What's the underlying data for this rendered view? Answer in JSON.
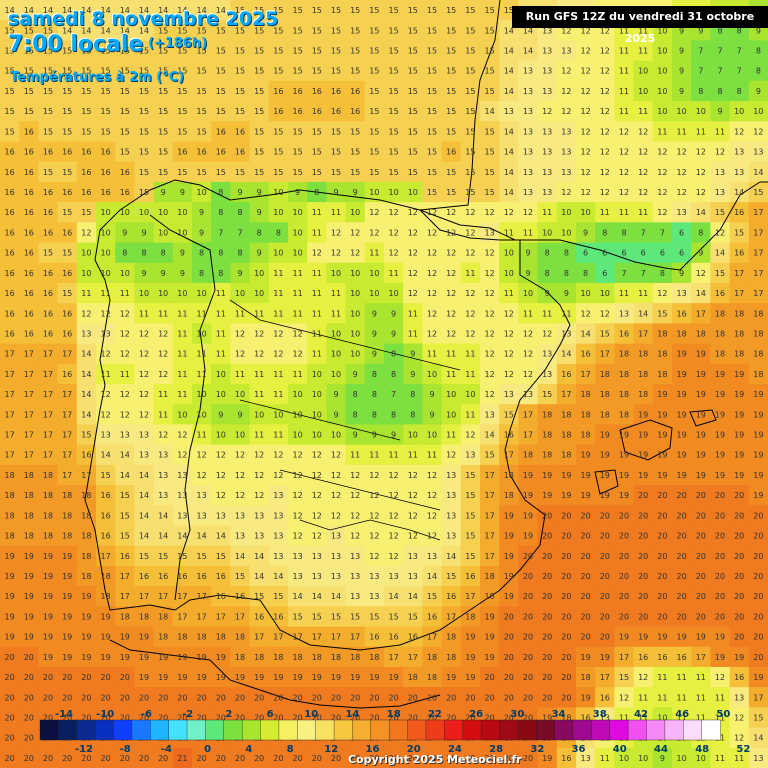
{
  "header": {
    "date_line": "samedi 8 novembre 2025",
    "time_line": "7:00 locale",
    "lead_time": "(+186h)",
    "variable": "Températures à 2m (°C)",
    "run_info": "Run GFS 12Z du vendredi 31 octobre 2025"
  },
  "legend": {
    "top_labels": [
      "-14",
      "-10",
      "-6",
      "-2",
      "2",
      "6",
      "10",
      "14",
      "18",
      "22",
      "26",
      "30",
      "34",
      "38",
      "42",
      "46",
      "50"
    ],
    "bottom_labels": [
      "-12",
      "-8",
      "-4",
      "0",
      "4",
      "8",
      "12",
      "16",
      "20",
      "24",
      "28",
      "32",
      "36",
      "40",
      "44",
      "48",
      "52"
    ],
    "colors": [
      "#0a1040",
      "#082060",
      "#0a2a90",
      "#0a30c0",
      "#1040ff",
      "#1a78ff",
      "#20b4ff",
      "#46e0ff",
      "#6ef0c8",
      "#5ee87a",
      "#7ce040",
      "#a8e430",
      "#d6ec30",
      "#f4f060",
      "#f8f080",
      "#f8e060",
      "#f6c840",
      "#f4ae30",
      "#f49224",
      "#f2761e",
      "#f05a1a",
      "#ee3c1a",
      "#ec1e1a",
      "#d40e10",
      "#b80a10",
      "#a00a14",
      "#8a0a14",
      "#780a28",
      "#880a60",
      "#a00a90",
      "#c00ab8",
      "#e00ae0",
      "#f050f0",
      "#f488f4",
      "#f8b4f8",
      "#fbdcfb",
      "#ffffff"
    ]
  },
  "copyright": "Copyright 2025 Meteociel.fr",
  "grid": {
    "rows": [
      "14 14 14 14 14 14 14 14 14 14 14 14 15 15 15 15 15 15 15 15 15 15 15 15 15 15 15 14 14 13 13 12 12 12 12 11 11 10 10 9",
      "15 15 15 14 14 14 14 14 15 15 15 15 15 15 15 15 15 15 15 15 15 15 15 15 15 15 14 14 13 12 12 12 11 11 10 9 9 8 8 9",
      "15 15 15 15 15 15 15 15 15 15 15 15 15 15 15 15 15 15 15 15 15 15 15 15 15 15 14 14 13 13 12 12 11 11 10 9 7 7 7 8",
      "15 15 15 15 15 15 15 15 15 15 15 15 15 15 15 15 15 15 15 15 15 15 15 15 15 15 14 13 13 12 12 12 11 10 10 9 7 7 7 8",
      "15 15 15 15 15 15 15 15 15 15 15 15 15 15 16 16 16 16 16 15 15 15 15 15 15 15 14 13 13 12 12 12 11 10 10 9 8 8 8 9",
      "15 15 15 15 15 15 15 15 15 15 15 15 15 15 16 16 16 16 16 15 15 15 15 15 15 14 13 13 12 12 12 12 11 11 10 10 10 9 10 10",
      "15 16 15 15 15 15 15 15 15 15 15 16 16 15 15 15 15 15 15 15 15 15 15 15 15 15 14 13 13 13 12 12 12 12 11 11 11 11 12 12",
      "16 16 16 16 16 16 15 15 15 16 16 16 16 15 15 15 15 15 15 15 15 15 15 16 15 15 14 13 13 13 12 12 12 12 12 12 12 12 13 13",
      "16 16 15 15 16 16 16 15 15 15 15 15 15 15 15 15 15 15 15 15 15 15 15 15 15 15 14 13 13 13 12 12 12 12 12 12 12 13 13 14",
      "16 16 16 16 16 16 16 15 9 9 10 8 9 9 10 9 8 9 9 10 10 10 15 15 15 15 14 13 13 12 12 12 12 12 12 12 12 13 14 15",
      "16 16 16 15 15 10 10 10 10 10 9 8 8 9 10 10 11 11 10 12 12 12 12 12 12 12 12 12 11 10 10 11 11 11 12 13 14 15 16 17",
      "16 16 16 16 12 10 9 9 10 10 9 7 7 8 8 10 11 12 12 12 12 12 12 12 12 13 11 11 10 10 9 8 8 7 7 6 8 12 15 17",
      "16 16 15 15 10 10 8 8 8 9 8 8 8 9 10 10 12 12 12 11 12 12 12 12 12 12 10 9 8 8 6 6 6 6 6 6 9 14 16 17",
      "16 16 16 16 10 10 10 9 9 9 8 8 9 10 11 11 11 10 10 10 11 12 12 12 11 12 10 9 8 8 8 6 7 7 8 9 12 15 17 17",
      "16 16 16 15 11 11 11 10 10 10 10 11 10 10 11 11 11 11 10 10 10 12 12 12 12 12 11 10 9 9 10 10 11 11 12 13 14 16 17 17",
      "16 16 16 16 12 12 12 11 11 11 11 11 11 11 11 11 11 11 10 9 9 11 12 12 12 12 12 11 11 11 12 12 13 14 15 16 17 18 18 18",
      "16 16 16 16 13 13 12 12 12 11 10 11 12 12 12 12 11 10 10 9 9 11 12 12 12 12 12 12 12 13 14 15 16 17 18 18 18 18 18 18",
      "17 17 17 17 14 12 12 12 12 11 11 11 12 12 12 12 11 10 10 9 8 9 11 11 11 12 12 12 13 14 16 17 18 18 18 19 19 18 18 18",
      "17 17 17 16 14 11 11 12 12 11 11 10 11 11 11 11 10 10 9 8 8 9 10 11 11 12 12 12 13 16 17 18 18 18 18 19 19 19 19 18",
      "17 17 17 17 14 12 12 12 11 11 10 10 10 11 11 10 10 9 8 8 7 8 9 10 10 12 13 13 15 17 18 18 18 18 19 19 19 19 19 19",
      "17 17 17 17 14 12 12 12 11 10 10 9 9 10 10 10 10 9 8 8 8 8 9 10 11 13 15 17 18 18 18 18 18 19 19 19 19 19 19 19",
      "17 17 17 17 15 13 13 13 12 12 11 10 10 11 11 10 10 10 9 9 9 10 10 11 12 14 16 17 18 18 18 19 19 19 19 19 19 19 19 19",
      "17 17 17 17 16 14 14 13 13 12 12 12 12 12 12 12 12 12 11 11 11 11 11 12 13 15 17 18 18 18 19 19 19 19 19 19 19 19 19 19",
      "18 18 18 17 17 15 14 14 13 13 12 12 12 12 12 12 12 12 12 12 12 12 12 13 15 17 18 19 19 19 19 19 19 19 19 19 19 19 19 19",
      "18 18 18 18 18 16 15 14 13 13 13 12 12 12 13 12 12 12 12 12 12 12 12 13 15 17 18 19 19 19 19 19 19 20 20 20 20 20 20 19",
      "18 18 18 18 18 16 15 14 14 13 13 13 13 13 13 12 12 12 12 12 12 12 12 13 15 17 19 19 20 20 20 20 20 20 20 20 20 20 20 20",
      "18 18 18 18 18 16 15 14 14 14 14 14 13 13 13 12 12 13 12 12 12 12 12 13 15 17 19 19 20 20 20 20 20 20 20 20 20 20 20 20",
      "19 19 19 19 18 17 16 15 15 15 15 15 14 14 13 13 13 13 13 12 12 13 13 14 15 17 19 20 20 20 20 20 20 20 20 20 20 20 20 20",
      "19 19 19 19 18 18 17 16 16 16 16 16 15 14 14 13 13 13 13 13 13 13 14 15 16 18 19 20 20 20 20 20 20 20 20 20 20 20 20 20",
      "19 19 19 19 19 18 17 17 17 17 17 16 16 15 15 14 14 14 13 13 14 14 15 16 17 18 19 20 20 20 20 20 20 20 20 20 20 20 20 20",
      "19 19 19 19 19 19 18 18 18 17 17 17 17 16 16 15 15 15 15 15 15 15 16 17 18 19 20 20 20 20 20 20 20 20 20 20 20 20 20 20",
      "19 19 19 19 19 19 19 19 18 18 18 18 18 17 17 17 17 17 17 16 16 16 17 18 19 19 20 20 20 20 20 20 19 19 19 19 19 19 20 20",
      "20 20 19 19 19 19 19 19 19 19 19 19 18 18 18 18 18 18 18 18 17 17 18 18 19 19 20 20 20 20 19 19 17 16 16 16 17 19 19 20",
      "20 20 20 20 20 20 20 19 19 19 19 19 19 19 19 19 19 19 19 19 19 18 18 19 19 20 20 20 20 20 18 17 15 12 11 11 11 12 16 19",
      "20 20 20 20 20 20 20 20 20 20 20 20 20 20 20 20 20 20 20 20 20 20 20 20 20 20 20 20 20 20 19 16 12 11 11 11 11 11 13 17",
      "20 20 20 20 20 20 20 20 20 20 20 20 20 20 20 20 20 20 20 20 20 20 20 20 20 20 20 20 19 18 16 13 11 11 10 11 11 11 12 15",
      "20 20 20 20 20 20 20 20 20 20 20 20 20 20 20 20 20 20 20 20 20 20 20 20 20 20 20 20 19 17 14 12 11 10 10 10 11 11 12 14",
      "20 20 20 20 20 20 20 20 20 21 20 20 20 20 20 20 20 20 20 20 20 20 20 20 20 20 20 20 19 16 13 11 10 10 9 10 10 11 11 13"
    ]
  }
}
